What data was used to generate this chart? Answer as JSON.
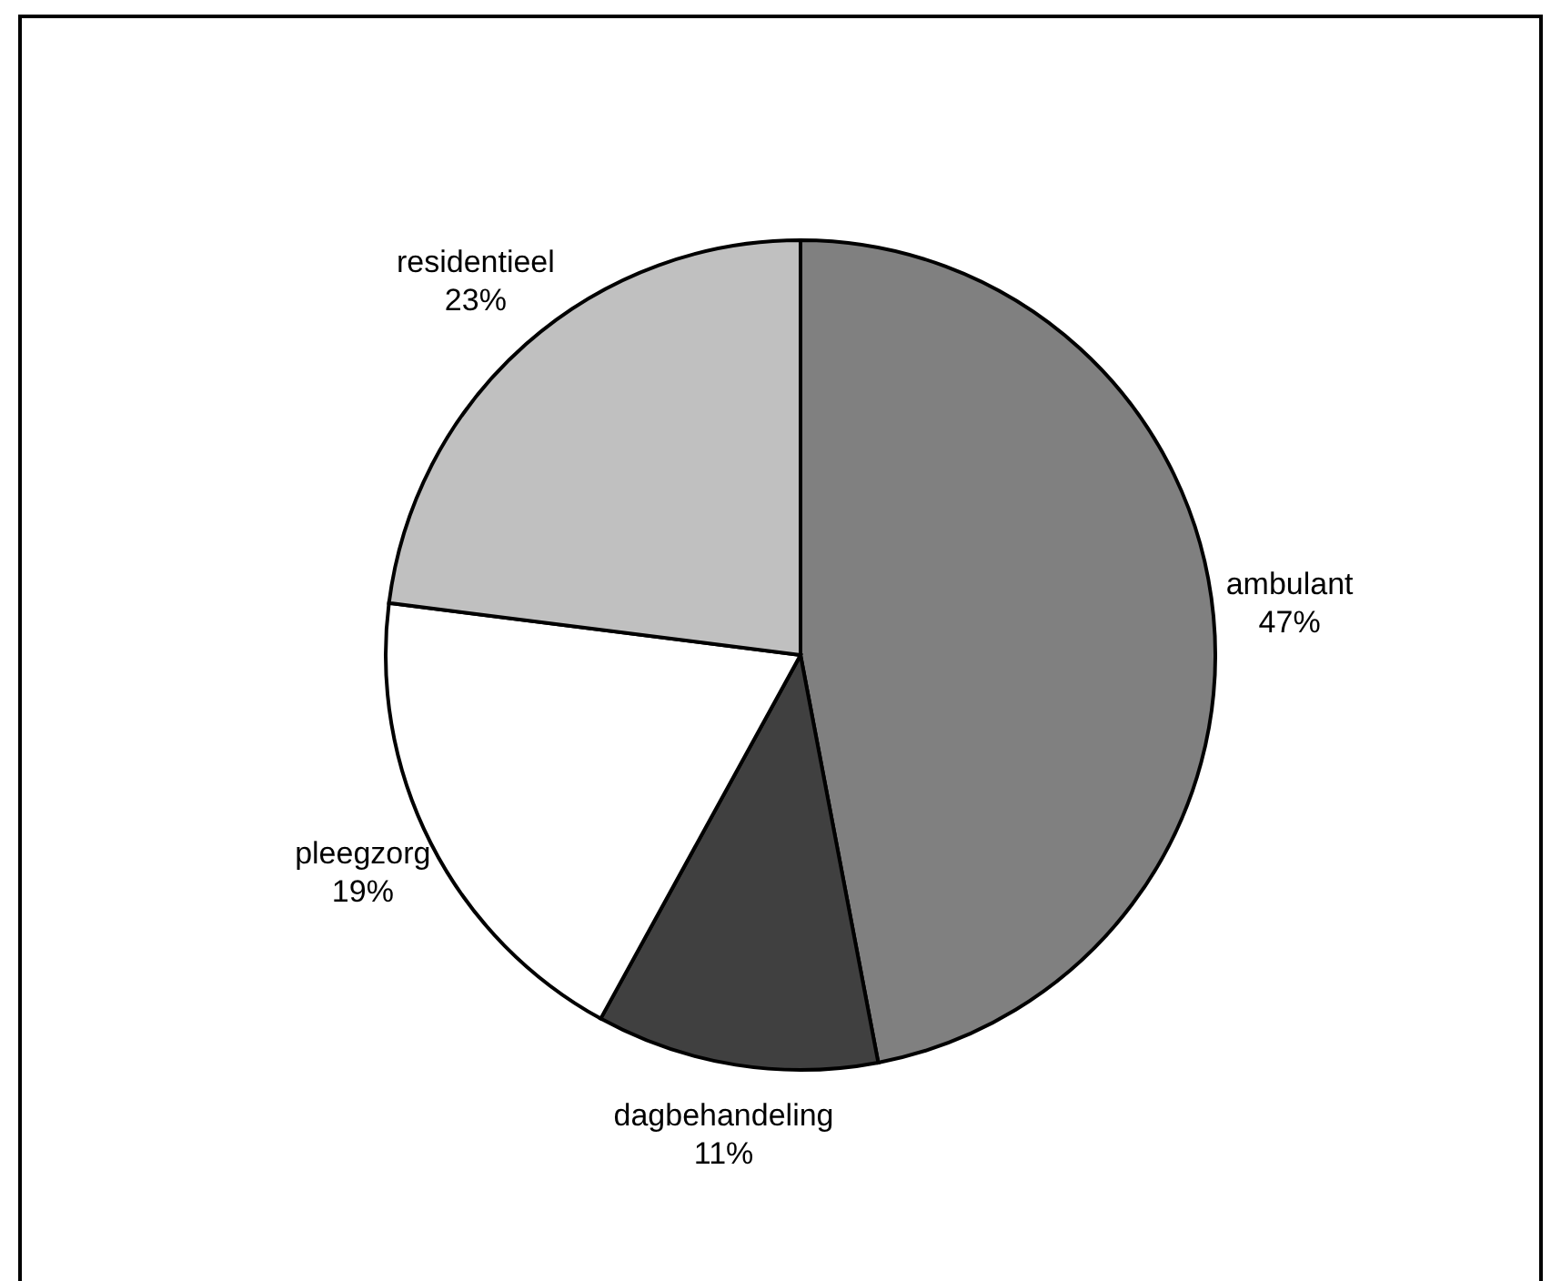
{
  "chart_data": {
    "type": "pie",
    "categories": [
      "ambulant",
      "dagbehandeling",
      "pleegzorg",
      "residentieel"
    ],
    "values": [
      47,
      11,
      19,
      23
    ],
    "colors": [
      "#808080",
      "#404040",
      "#ffffff",
      "#c0c0c0"
    ],
    "value_labels": [
      "47%",
      "11%",
      "19%",
      "23%"
    ]
  }
}
